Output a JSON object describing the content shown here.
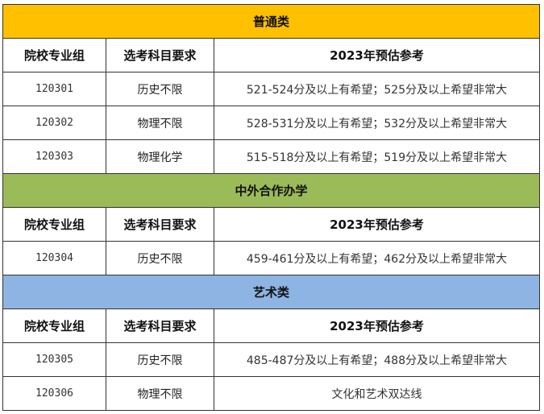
{
  "headers": [
    "院校专业组",
    "选考科目要求",
    "2023年预估参考"
  ],
  "sections": [
    {
      "title": "普通类",
      "color": "#FFC000",
      "rows": [
        {
          "group": "120301",
          "subject": "历史不限",
          "estimate": "521-524分及以上有希望；525分及以上希望非常大"
        },
        {
          "group": "120302",
          "subject": "物理不限",
          "estimate": "528-531分及以上有希望；532分及以上希望非常大"
        },
        {
          "group": "120303",
          "subject": "物理化学",
          "estimate": "515-518分及以上有希望；519分及以上希望非常大"
        }
      ]
    },
    {
      "title": "中外合作办学",
      "color": "#9BBB59",
      "rows": [
        {
          "group": "120304",
          "subject": "历史不限",
          "estimate": "459-461分及以上有希望；462分及以上希望非常大"
        }
      ]
    },
    {
      "title": "艺术类",
      "color": "#8DB4E2",
      "rows": [
        {
          "group": "120305",
          "subject": "历史不限",
          "estimate": "485-487分及以上有希望；488分及以上希望非常大"
        },
        {
          "group": "120306",
          "subject": "物理不限",
          "estimate": "文化和艺术双达线"
        }
      ]
    }
  ]
}
